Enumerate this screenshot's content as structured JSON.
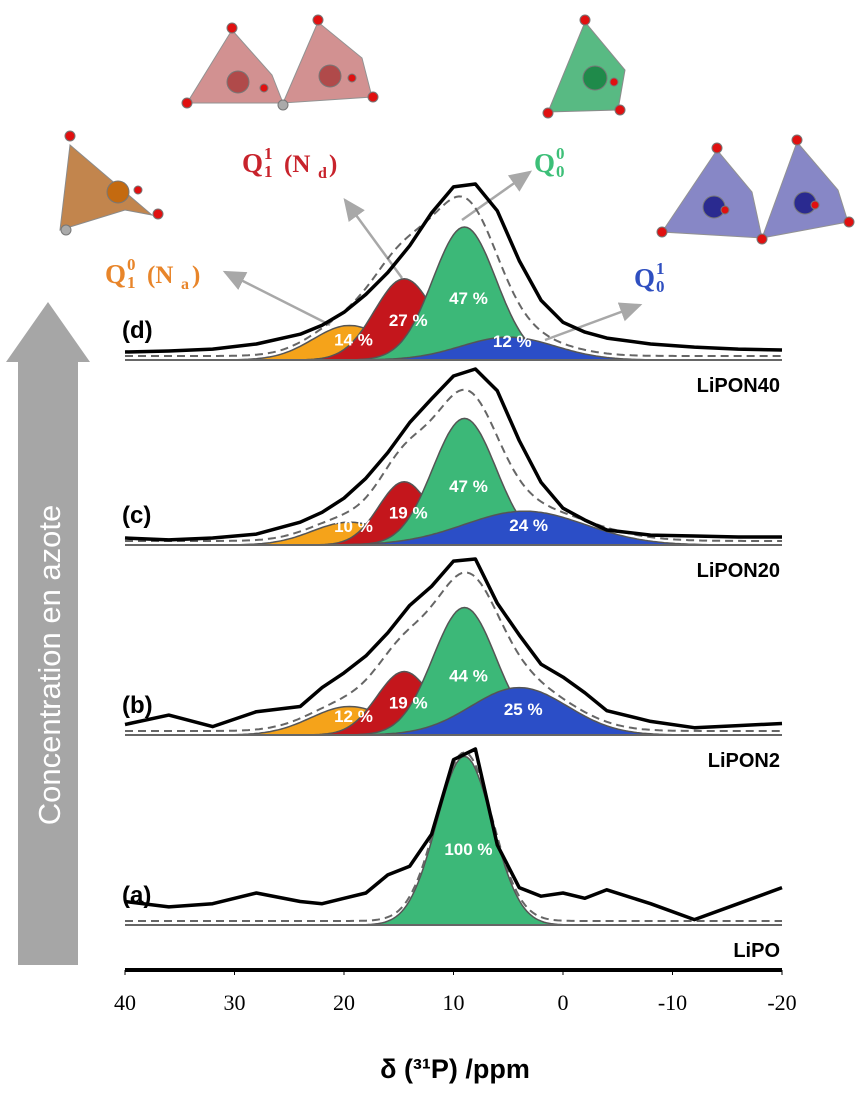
{
  "chart_data": {
    "type": "nmr-stack",
    "x_label": "δ (³¹P) /ppm",
    "side_label": "Concentration en azote",
    "xlim": [
      40,
      -20
    ],
    "xticks": [
      40,
      30,
      20,
      10,
      0,
      -10,
      -20
    ],
    "species": [
      {
        "symbol": "Q",
        "sub": "1",
        "sup": "0",
        "site_prefix": "(N",
        "site_sub": "a",
        "site_suffix": ")",
        "label_color": "#e8852a",
        "color": "#f5a31a"
      },
      {
        "symbol": "Q",
        "sub": "1",
        "sup": "1",
        "site_prefix": "(N",
        "site_sub": "d",
        "site_suffix": ")",
        "label_color": "#c8232c",
        "color": "#c4161c"
      },
      {
        "symbol": "Q",
        "sub": "0",
        "sup": "0",
        "label_color": "#3dbf78",
        "color": "#3cb878"
      },
      {
        "symbol": "Q",
        "sub": "0",
        "sup": "1",
        "label_color": "#2f4fc0",
        "color": "#2b4ec7"
      }
    ],
    "x": [
      40,
      36,
      32,
      28,
      24,
      22,
      20,
      18,
      16,
      14,
      12,
      10,
      8,
      6,
      4,
      2,
      0,
      -2,
      -4,
      -8,
      -12,
      -16,
      -20
    ],
    "spectra": [
      {
        "letter": "(a)",
        "sample": "LiPO",
        "intensity": [
          2.18,
          1.68,
          1.98,
          2.97,
          2.18,
          1.98,
          2.48,
          2.97,
          4.65,
          5.45,
          8.42,
          15.35,
          16.34,
          7.43,
          3.47,
          2.67,
          2.97,
          2.48,
          3.27,
          1.98,
          0.5,
          1.98,
          3.47
        ],
        "components": [
          null,
          null,
          {
            "center": 9,
            "fwhm": 6,
            "area": 100,
            "value_label": "100 %"
          },
          null
        ]
      },
      {
        "letter": "(b)",
        "sample": "LiPON2",
        "intensity": [
          0.5,
          0.95,
          0.4,
          1.11,
          1.36,
          2.26,
          2.96,
          3.77,
          4.87,
          6.18,
          7.09,
          8.29,
          8.39,
          6.28,
          4.77,
          3.37,
          2.76,
          2.01,
          1.16,
          0.65,
          0.35,
          0.45,
          0.55
        ],
        "components": [
          {
            "center": 19.5,
            "fwhm": 8.3,
            "area": 12,
            "value_label": "12 %"
          },
          {
            "center": 14.5,
            "fwhm": 5.9,
            "area": 19,
            "value_label": "19 %"
          },
          {
            "center": 9,
            "fwhm": 6.8,
            "area": 44,
            "value_label": "44 %"
          },
          {
            "center": 4,
            "fwhm": 10.4,
            "area": 25,
            "value_label": "25 %"
          }
        ]
      },
      {
        "letter": "(c)",
        "sample": "LiPON20",
        "intensity": [
          0.36,
          0.26,
          0.36,
          0.56,
          1.17,
          1.68,
          2.4,
          3.42,
          4.74,
          6.28,
          7.5,
          8.67,
          9.03,
          7.91,
          5.36,
          3.21,
          1.89,
          1.28,
          0.77,
          0.51,
          0.46,
          0.41,
          0.41
        ],
        "components": [
          {
            "center": 19.5,
            "fwhm": 8,
            "area": 10,
            "value_label": "10 %"
          },
          {
            "center": 14.5,
            "fwhm": 5.5,
            "area": 19,
            "value_label": "19 %"
          },
          {
            "center": 9,
            "fwhm": 6.8,
            "area": 47,
            "value_label": "47 %"
          },
          {
            "center": 3.5,
            "fwhm": 13,
            "area": 24,
            "value_label": "24 %"
          }
        ]
      },
      {
        "letter": "(d)",
        "sample": "LiPON40",
        "intensity": [
          0.39,
          0.44,
          0.53,
          0.78,
          1.26,
          1.7,
          2.33,
          3.2,
          4.27,
          5.58,
          7.18,
          8.45,
          8.59,
          7.28,
          4.85,
          2.91,
          1.84,
          1.36,
          1.07,
          0.78,
          0.63,
          0.53,
          0.49
        ],
        "components": [
          {
            "center": 19.5,
            "fwhm": 7.8,
            "area": 14,
            "value_label": "14 %"
          },
          {
            "center": 14.5,
            "fwhm": 6.4,
            "area": 27,
            "value_label": "27 %"
          },
          {
            "center": 9,
            "fwhm": 6.8,
            "area": 47,
            "value_label": "47 %"
          },
          {
            "center": 5,
            "fwhm": 10.1,
            "area": 12,
            "value_label": "12 %"
          }
        ]
      }
    ]
  }
}
